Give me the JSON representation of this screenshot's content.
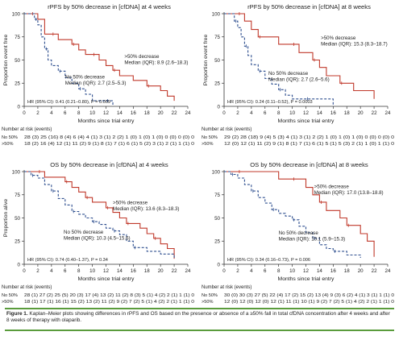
{
  "figure": {
    "label": "Figure 1.",
    "text": "Kaplan–Meier plots showing differences in rPFS and OS based on the presence or absence of a ≥50% fall in total cfDNA concentration after 4 weeks and after 8 weeks of therapy with olaparib."
  },
  "chart_data": [
    {
      "type": "line",
      "title": "rPFS by 50% decrease in [cfDNA] at 4 weeks",
      "xlabel": "Months since trial entry",
      "ylabel": "Proportion event free",
      "xlim": [
        0,
        24
      ],
      "ylim": [
        0,
        100
      ],
      "x_ticks": [
        "0",
        "2",
        "4",
        "6",
        "8",
        "10",
        "12",
        "14",
        "16",
        "18",
        "20",
        "22",
        "24"
      ],
      "y_ticks": [
        "0",
        "25",
        "50",
        "75",
        "100"
      ],
      "grid": false,
      "series": [
        {
          "name": ">50% decrease",
          "color": "#c0392b",
          "style": "solid",
          "x": [
            0,
            1,
            2,
            3,
            4,
            5,
            6,
            7,
            8,
            9,
            10,
            11,
            12,
            13,
            14,
            16,
            18,
            20,
            21,
            22
          ],
          "y": [
            100,
            100,
            94,
            78,
            78,
            72,
            72,
            67,
            61,
            56,
            56,
            50,
            44,
            39,
            33,
            28,
            22,
            17,
            11,
            6
          ]
        },
        {
          "name": "No 50% decrease",
          "color": "#2e4f8f",
          "style": "dashed",
          "x": [
            0,
            1.5,
            2,
            2.5,
            3,
            3.5,
            4,
            5,
            6,
            7,
            8,
            9,
            10,
            12,
            13
          ],
          "y": [
            100,
            94,
            88,
            75,
            62,
            50,
            44,
            38,
            31,
            25,
            19,
            13,
            6,
            6,
            0
          ]
        }
      ],
      "annotations": [
        {
          "series": 0,
          "text": ">50% decrease",
          "median": "Median (IQR): 8.9 (2.6–18.3)"
        },
        {
          "series": 1,
          "text": "No 50% decrease",
          "median": "Median (IQR): 2.7 (2.5–5.3)"
        }
      ],
      "hr": "HR (95% CI): 0.41 (0.21–0.80), P = 0.009",
      "risk_table": {
        "title": "Number at risk (events)",
        "rows": [
          {
            "label": "No 50%",
            "cells": "28 (3) 25 (16) 8 (4) 6 (4) 4 (1) 3 (1) 2 (2) 1 (0) 1 (0) 1 (0) 0 (0) 0 (0) 0"
          },
          {
            "label": ">50%",
            "cells": "18 (2) 16 (4) 12 (1) 11 (2) 9 (1) 8 (1) 7 (1) 6 (1) 5 (2) 3 (1) 2 (1) 1 (1) 0"
          }
        ]
      }
    },
    {
      "type": "line",
      "title": "rPFS by 50% decrease in [cfDNA] at 8 weeks",
      "xlabel": "Months since trial entry",
      "ylabel": "Proportion event free",
      "xlim": [
        0,
        24
      ],
      "ylim": [
        0,
        100
      ],
      "x_ticks": [
        "0",
        "2",
        "4",
        "6",
        "8",
        "10",
        "12",
        "14",
        "16",
        "18",
        "20",
        "22",
        "24"
      ],
      "y_ticks": [
        "0",
        "25",
        "50",
        "75",
        "100"
      ],
      "grid": false,
      "series": [
        {
          "name": ">50% decrease",
          "color": "#c0392b",
          "style": "solid",
          "x": [
            0,
            2,
            3,
            4,
            5,
            6,
            8,
            10,
            11,
            12,
            13,
            14,
            15,
            17,
            19,
            20,
            22
          ],
          "y": [
            100,
            100,
            92,
            83,
            75,
            75,
            67,
            67,
            58,
            58,
            50,
            42,
            33,
            25,
            17,
            17,
            8
          ]
        },
        {
          "name": "No 50% decrease",
          "color": "#2e4f8f",
          "style": "dashed",
          "x": [
            0,
            1.5,
            2,
            2.5,
            3,
            3.5,
            4,
            5,
            6,
            7,
            8,
            9,
            10,
            12,
            16
          ],
          "y": [
            100,
            92,
            85,
            75,
            65,
            55,
            45,
            38,
            30,
            24,
            18,
            12,
            8,
            8,
            0
          ]
        }
      ],
      "annotations": [
        {
          "series": 0,
          "text": ">50% decrease",
          "median": "Median (IQR): 15.3 (8.3–18.7)"
        },
        {
          "series": 1,
          "text": "No 50% decrease",
          "median": "Median (IQR): 2.7 (2.6–5.6)"
        }
      ],
      "hr": "HR (95% CI): 0.24 (0.11–0.52), P = 0.0003",
      "risk_table": {
        "title": "Number at risk (events)",
        "rows": [
          {
            "label": "No 50%",
            "cells": "29 (2) 28 (18) 9 (4) 5 (3) 4 (1) 3 (1) 2 (2) 1 (0) 1 (0) 1 (0) 0 (0) 0 (0) 0"
          },
          {
            "label": ">50%",
            "cells": "12 (0) 12 (1) 11 (2) 9 (1) 8 (1) 7 (1) 6 (1) 5 (1) 5 (3) 2 (1) 1 (0) 1 (1) 0"
          }
        ]
      }
    },
    {
      "type": "line",
      "title": "OS by 50% decrease in [cfDNA] at 4 weeks",
      "xlabel": "Months since trial entry",
      "ylabel": "Proportion alive",
      "xlim": [
        0,
        24
      ],
      "ylim": [
        0,
        100
      ],
      "x_ticks": [
        "0",
        "2",
        "4",
        "6",
        "8",
        "10",
        "12",
        "14",
        "16",
        "18",
        "20",
        "22",
        "24"
      ],
      "y_ticks": [
        "0",
        "25",
        "50",
        "75",
        "100"
      ],
      "grid": false,
      "series": [
        {
          "name": ">50% decrease",
          "color": "#c0392b",
          "style": "solid",
          "x": [
            0,
            2,
            3,
            5,
            6,
            7,
            8,
            9,
            10,
            11,
            12,
            13,
            14,
            15,
            17,
            18,
            19,
            20,
            21,
            22
          ],
          "y": [
            100,
            100,
            94,
            94,
            89,
            83,
            78,
            72,
            67,
            67,
            61,
            56,
            50,
            44,
            39,
            33,
            28,
            22,
            17,
            6
          ]
        },
        {
          "name": "No 50% decrease",
          "color": "#2e4f8f",
          "style": "dashed",
          "x": [
            0,
            1,
            2,
            3,
            4,
            5,
            6,
            7,
            8,
            9,
            10,
            11,
            12,
            13,
            14,
            15,
            16,
            18,
            20,
            22
          ],
          "y": [
            100,
            96,
            93,
            86,
            79,
            71,
            64,
            57,
            54,
            50,
            46,
            43,
            39,
            36,
            32,
            25,
            18,
            14,
            11,
            7
          ]
        }
      ],
      "annotations": [
        {
          "series": 0,
          "text": ">50% decrease",
          "median": "Median (IQR): 13.6 (8.3–18.3)"
        },
        {
          "series": 1,
          "text": "No 50% decrease",
          "median": "Median (IQR): 10.3 (4.5–15.6)"
        }
      ],
      "hr": "HR (95% CI): 0.74 (0.40–1.37), P = 0.34",
      "risk_table": {
        "title": "Number at risk (events)",
        "rows": [
          {
            "label": "No 50%",
            "cells": "28 (1) 27 (2) 25 (5) 20 (3) 17 (4) 13 (2) 11 (2) 8 (3) 5 (1) 4 (2) 2 (1) 1 (1) 0"
          },
          {
            "label": ">50%",
            "cells": "18 (1) 17 (1) 16 (1) 15 (2) 13 (2) 11 (2) 9 (2) 7 (2) 5 (1) 4 (2) 2 (1) 1 (1) 0"
          }
        ]
      }
    },
    {
      "type": "line",
      "title": "OS by 50% decrease in [cfDNA] at 8 weeks",
      "xlabel": "Months since trial entry",
      "ylabel": "",
      "xlim": [
        0,
        24
      ],
      "ylim": [
        0,
        100
      ],
      "x_ticks": [
        "0",
        "2",
        "4",
        "6",
        "8",
        "10",
        "12",
        "14",
        "16",
        "18",
        "20",
        "22",
        "24"
      ],
      "y_ticks": [
        "0",
        "25",
        "50",
        "75",
        "100"
      ],
      "grid": false,
      "series": [
        {
          "name": ">50% decrease",
          "color": "#c0392b",
          "style": "solid",
          "x": [
            0,
            2,
            6,
            8,
            10,
            12,
            13,
            14,
            15,
            17,
            18,
            20,
            21,
            22
          ],
          "y": [
            100,
            100,
            100,
            92,
            92,
            83,
            75,
            67,
            58,
            50,
            42,
            33,
            25,
            8
          ]
        },
        {
          "name": "No 50% decrease",
          "color": "#2e4f8f",
          "style": "dashed",
          "x": [
            0,
            1,
            2,
            3,
            4,
            5,
            6,
            7,
            8,
            9,
            10,
            11,
            12,
            13,
            14,
            15,
            16,
            18,
            20
          ],
          "y": [
            100,
            97,
            93,
            86,
            79,
            72,
            66,
            59,
            55,
            52,
            48,
            41,
            34,
            28,
            21,
            17,
            14,
            10,
            7
          ]
        }
      ],
      "annotations": [
        {
          "series": 0,
          "text": ">50% decrease",
          "median": "Median (IQR): 17.0 (13.8–18.8)"
        },
        {
          "series": 1,
          "text": "No 50% decrease",
          "median": "Median (IQR): 10.1 (5.9–15.3)"
        }
      ],
      "hr": "HR (95% CI): 0.34 (0.16–0.73), P = 0.006",
      "risk_table": {
        "title": "Number at risk (events)",
        "rows": [
          {
            "label": "No 50%",
            "cells": "30 (0) 30 (3) 27 (5) 22 (4) 17 (2) 15 (2) 13 (4) 9 (3) 6 (2) 4 (1) 3 (1) 1 (1) 0"
          },
          {
            "label": ">50%",
            "cells": "12 (0) 12 (0) 12 (0) 12 (1) 11 (1) 10 (1) 9 (2) 7 (2) 5 (1) 4 (2) 2 (1) 1 (1) 0"
          }
        ]
      }
    }
  ]
}
